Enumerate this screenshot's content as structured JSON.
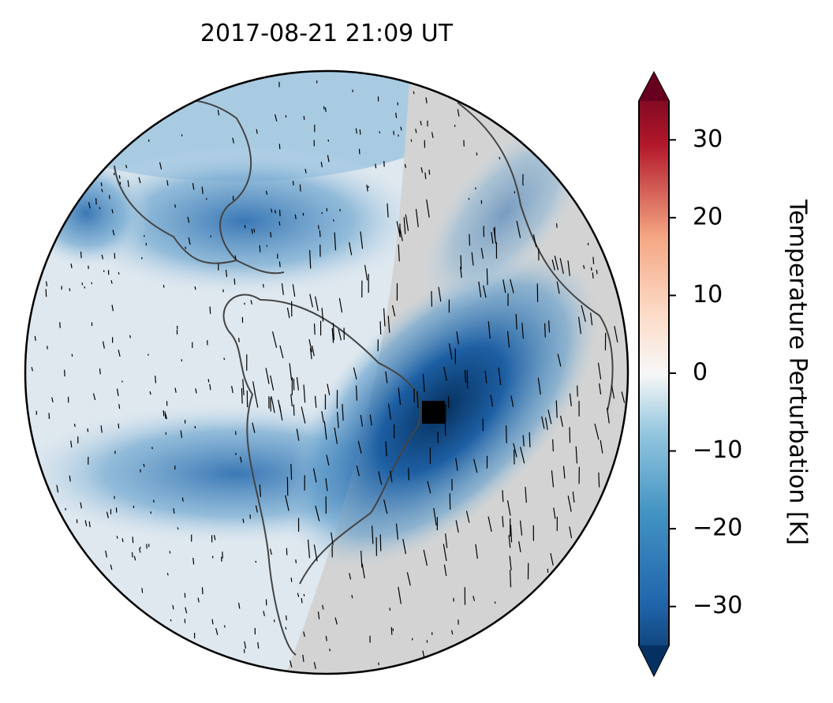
{
  "title": "2017-08-21  21:09 UT",
  "colorbar": {
    "label": "Temperature Perturbation [K]",
    "lim": [
      -35,
      35
    ],
    "ticks": [
      30,
      20,
      10,
      0,
      {
        "value": -10,
        "label": "−10"
      },
      {
        "value": -20,
        "label": "−20"
      },
      {
        "value": -30,
        "label": "−30"
      }
    ]
  }
}
